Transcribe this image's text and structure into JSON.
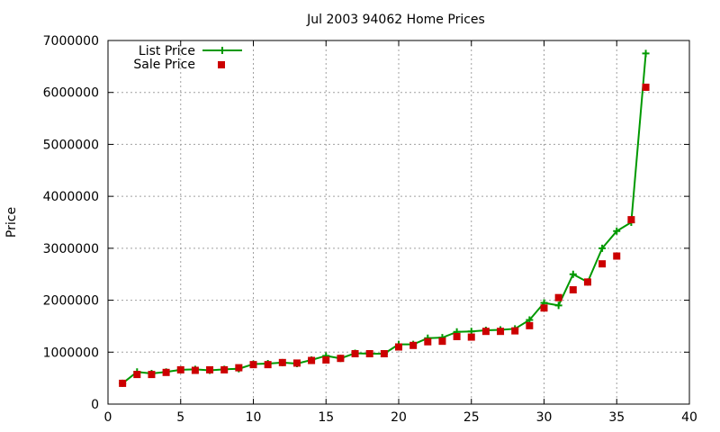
{
  "chart_data": {
    "type": "line",
    "title": "Jul 2003 94062 Home Prices",
    "xlabel": "",
    "ylabel": "Price",
    "xlim": [
      0,
      40
    ],
    "ylim": [
      0,
      7000000
    ],
    "x_ticks": [
      "0",
      "5",
      "10",
      "15",
      "20",
      "25",
      "30",
      "35",
      "40"
    ],
    "y_ticks": [
      "0",
      "1000000",
      "2000000",
      "3000000",
      "4000000",
      "5000000",
      "6000000",
      "7000000"
    ],
    "grid": true,
    "legend_position": "top-left",
    "x": [
      1,
      2,
      3,
      4,
      5,
      6,
      7,
      8,
      9,
      10,
      11,
      12,
      13,
      14,
      15,
      16,
      17,
      18,
      19,
      20,
      21,
      22,
      23,
      24,
      25,
      26,
      27,
      28,
      29,
      30,
      31,
      32,
      33,
      34,
      35,
      36,
      37
    ],
    "series": [
      {
        "name": "List Price",
        "style": "line-with-plus-markers",
        "color": "#009900",
        "values": [
          400000,
          620000,
          590000,
          620000,
          660000,
          670000,
          650000,
          670000,
          680000,
          770000,
          780000,
          800000,
          780000,
          850000,
          930000,
          880000,
          980000,
          970000,
          970000,
          1150000,
          1150000,
          1270000,
          1280000,
          1390000,
          1400000,
          1420000,
          1430000,
          1450000,
          1620000,
          1950000,
          1900000,
          2500000,
          2350000,
          3000000,
          3330000,
          3500000,
          6750000
        ]
      },
      {
        "name": "Sale Price",
        "style": "square-markers",
        "color": "#cc0000",
        "values": [
          400000,
          570000,
          570000,
          610000,
          660000,
          650000,
          660000,
          660000,
          700000,
          760000,
          760000,
          800000,
          790000,
          840000,
          850000,
          880000,
          970000,
          970000,
          970000,
          1100000,
          1130000,
          1200000,
          1210000,
          1300000,
          1290000,
          1400000,
          1400000,
          1410000,
          1510000,
          1850000,
          2050000,
          2200000,
          2350000,
          2700000,
          2850000,
          3550000,
          6100000
        ]
      }
    ]
  }
}
